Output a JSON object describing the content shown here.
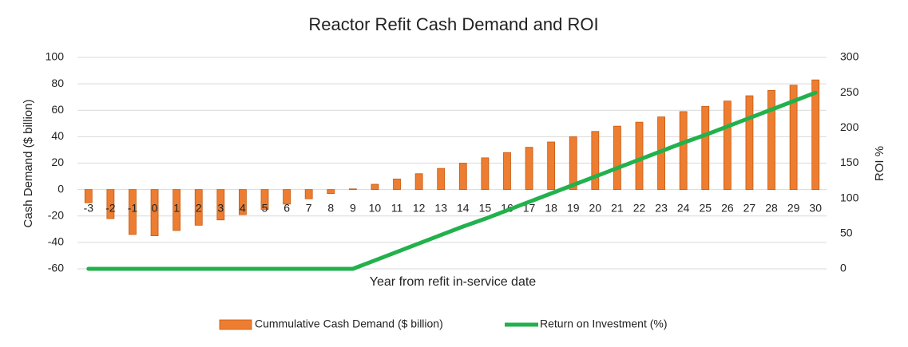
{
  "chart_data": {
    "type": "combo",
    "title": "Reactor Refit Cash Demand and ROI",
    "x_label": "Year from refit in-service date",
    "y_label": "Cash Demand ($ billion)",
    "y2_label": "ROI %",
    "categories": [
      -3,
      -2,
      -1,
      0,
      1,
      2,
      3,
      4,
      5,
      6,
      7,
      8,
      9,
      10,
      11,
      12,
      13,
      14,
      15,
      16,
      17,
      18,
      19,
      20,
      21,
      22,
      23,
      24,
      25,
      26,
      27,
      28,
      29,
      30
    ],
    "series": [
      {
        "name": "Cummulative Cash Demand ($ billion)",
        "type": "bar",
        "color": "#ed7d31",
        "values": [
          -10,
          -22,
          -34,
          -35,
          -31,
          -27,
          -23,
          -19,
          -15,
          -11,
          -7,
          -3,
          0.5,
          4,
          8,
          12,
          16,
          20,
          24,
          28,
          32,
          36,
          40,
          44,
          48,
          51,
          55,
          59,
          63,
          67,
          71,
          75,
          79,
          83
        ]
      },
      {
        "name": "Return on Investment (%)",
        "type": "line",
        "color": "#22b14c",
        "axis": "y2",
        "values": [
          0,
          0,
          0,
          0,
          0,
          0,
          0,
          0,
          0,
          0,
          0,
          0,
          0,
          12,
          24,
          36,
          48,
          60,
          71,
          83,
          95,
          107,
          119,
          131,
          143,
          155,
          167,
          179,
          190,
          202,
          214,
          226,
          238,
          250
        ]
      }
    ],
    "ylim": [
      -60,
      100
    ],
    "yticks": [
      -60,
      -40,
      -20,
      0,
      20,
      40,
      60,
      80,
      100
    ],
    "y2lim": [
      0,
      300
    ],
    "y2ticks": [
      0,
      50,
      100,
      150,
      200,
      250,
      300
    ],
    "grid": true,
    "legend": "bottom"
  }
}
